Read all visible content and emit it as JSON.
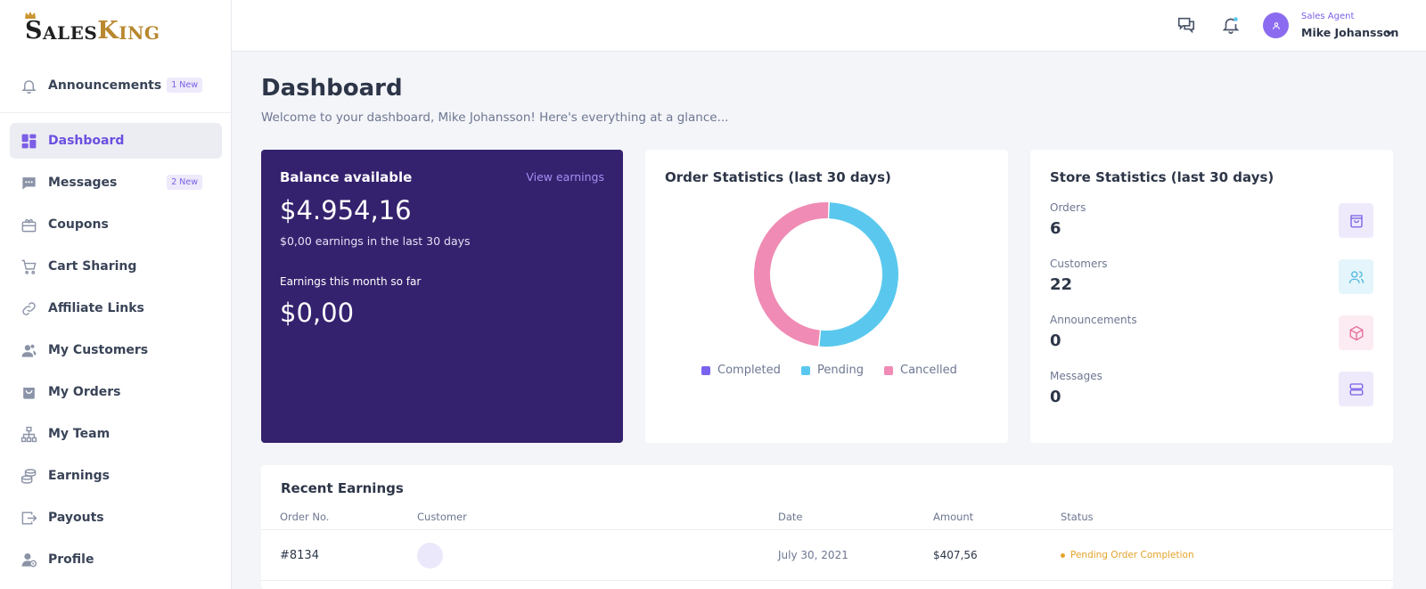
{
  "brand": {
    "logo_s": "S",
    "logo_ales": "ALES",
    "logo_k": "K",
    "logo_ing": "ING"
  },
  "sidebar": {
    "items": [
      {
        "label": "Announcements",
        "icon": "bell-icon",
        "badge": "1 New"
      },
      {
        "label": "Dashboard",
        "icon": "dashboard-icon",
        "active": true
      },
      {
        "label": "Messages",
        "icon": "chat-icon",
        "badge": "2 New"
      },
      {
        "label": "Coupons",
        "icon": "coupon-icon"
      },
      {
        "label": "Cart Sharing",
        "icon": "cart-icon"
      },
      {
        "label": "Affiliate Links",
        "icon": "link-icon"
      },
      {
        "label": "My Customers",
        "icon": "users-icon"
      },
      {
        "label": "My Orders",
        "icon": "bag-icon"
      },
      {
        "label": "My Team",
        "icon": "team-icon"
      },
      {
        "label": "Earnings",
        "icon": "coins-icon"
      },
      {
        "label": "Payouts",
        "icon": "payout-icon"
      },
      {
        "label": "Profile",
        "icon": "profile-icon"
      }
    ]
  },
  "header": {
    "user_role": "Sales Agent",
    "user_name": "Mike Johansson"
  },
  "page": {
    "title": "Dashboard",
    "subtitle": "Welcome to your dashboard, Mike Johansson! Here's everything at a glance..."
  },
  "balance": {
    "title": "Balance available",
    "view_link": "View earnings",
    "amount": "$4.954,16",
    "note": "$0,00 earnings in the last 30 days",
    "month_label": "Earnings this month so far",
    "month_amount": "$0,00"
  },
  "order_stats": {
    "title": "Order Statistics (last 30 days)"
  },
  "chart_data": {
    "type": "pie",
    "title": "Order Statistics (last 30 days)",
    "categories": [
      "Completed",
      "Pending",
      "Cancelled"
    ],
    "values": [
      0,
      51,
      49
    ],
    "colors": [
      "#7a63ee",
      "#5ac8ee",
      "#ef8bb4"
    ],
    "donut": true
  },
  "store_stats": {
    "title": "Store Statistics (last 30 days)",
    "items": [
      {
        "label": "Orders",
        "value": "6",
        "icon": "bag-icon",
        "bg": "#eeeafb",
        "fg": "#7b5ee6"
      },
      {
        "label": "Customers",
        "value": "22",
        "icon": "users-icon",
        "bg": "#e4f5fb",
        "fg": "#4fb8e0"
      },
      {
        "label": "Announcements",
        "value": "0",
        "icon": "box-icon",
        "bg": "#fcebf2",
        "fg": "#e66e9e"
      },
      {
        "label": "Messages",
        "value": "0",
        "icon": "server-icon",
        "bg": "#eeeafb",
        "fg": "#7b5ee6"
      }
    ]
  },
  "recent": {
    "title": "Recent Earnings",
    "headers": [
      "Order No.",
      "Customer",
      "Date",
      "Amount",
      "Status"
    ],
    "rows": [
      {
        "order": "#8134",
        "date": "July 30, 2021",
        "amount": "$407,56",
        "status": "Pending Order Completion"
      }
    ]
  }
}
